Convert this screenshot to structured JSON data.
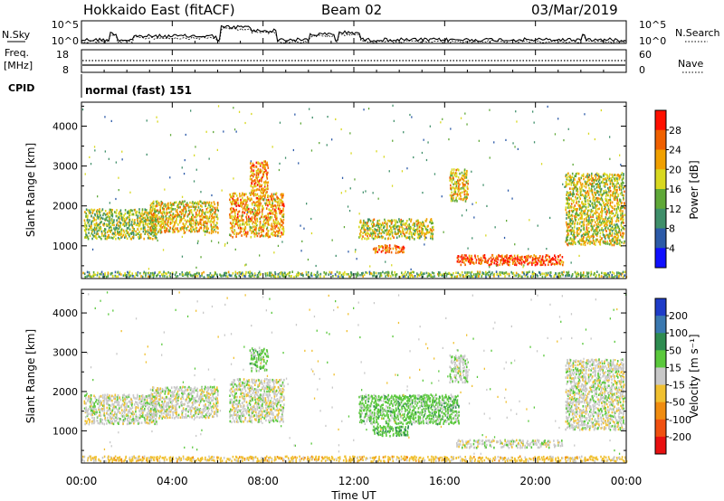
{
  "header": {
    "station": "Hokkaido East (fitACF)",
    "beam": "Beam 02",
    "date": "03/Mar/2019"
  },
  "noise_panel": {
    "left_label": "N.Sky",
    "right_label": "N.Search",
    "left_ticks": [
      "10^5",
      "10^0"
    ],
    "right_ticks": [
      "10^5",
      "10^0"
    ]
  },
  "freq_panel": {
    "left_label_1": "Freq.",
    "left_label_2": "[MHz]",
    "right_label": "Nave",
    "left_ticks": [
      "18",
      "8"
    ],
    "right_ticks": [
      "60",
      "0"
    ]
  },
  "cpid_panel": {
    "label": "CPID",
    "mode_text": "normal (fast) 151"
  },
  "x_axis": {
    "label": "Time UT",
    "ticks": [
      "00:00",
      "04:00",
      "08:00",
      "12:00",
      "16:00",
      "20:00",
      "00:00"
    ]
  },
  "chart_data": [
    {
      "type": "heatmap",
      "name_panel": "power",
      "ylabel": "Slant Range [km]",
      "y_ticks": [
        1000,
        2000,
        3000,
        4000
      ],
      "ylim": [
        180,
        4600
      ],
      "xlim_hours": [
        0,
        24
      ],
      "colorbar_label": "Power [dB]",
      "colorbar_ticks": [
        "4",
        "8",
        "12",
        "16",
        "20",
        "24",
        "28"
      ],
      "colorbar_colors": [
        "#1010ff",
        "#2c5aa8",
        "#3f8f6a",
        "#5fa838",
        "#d8d820",
        "#f0a000",
        "#f06000",
        "#ff1000"
      ],
      "regions": [
        {
          "t0": 0.1,
          "t1": 3.3,
          "r0": 1150,
          "r1": 1900,
          "value": 16
        },
        {
          "t0": 3.0,
          "t1": 6.0,
          "r0": 1300,
          "r1": 2100,
          "value": 20
        },
        {
          "t0": 6.5,
          "t1": 8.9,
          "r0": 1200,
          "r1": 2300,
          "value": 22
        },
        {
          "t0": 7.4,
          "t1": 8.2,
          "r0": 2300,
          "r1": 3100,
          "value": 24
        },
        {
          "t0": 12.2,
          "t1": 15.5,
          "r0": 1150,
          "r1": 1650,
          "value": 18
        },
        {
          "t0": 12.8,
          "t1": 14.2,
          "r0": 800,
          "r1": 1000,
          "value": 26
        },
        {
          "t0": 16.2,
          "t1": 17.0,
          "r0": 2100,
          "r1": 2900,
          "value": 20
        },
        {
          "t0": 16.5,
          "t1": 21.2,
          "r0": 500,
          "r1": 750,
          "value": 27
        },
        {
          "t0": 21.3,
          "t1": 23.9,
          "r0": 1000,
          "r1": 2800,
          "value": 18
        },
        {
          "t0": 0.0,
          "t1": 24.0,
          "r0": 200,
          "r1": 330,
          "value": 14
        }
      ]
    },
    {
      "type": "heatmap",
      "name_panel": "velocity",
      "ylabel": "Slant Range [km]",
      "y_ticks": [
        1000,
        2000,
        3000,
        4000
      ],
      "ylim": [
        180,
        4600
      ],
      "xlim_hours": [
        0,
        24
      ],
      "colorbar_label": "Velocity [m s⁻¹]",
      "colorbar_ticks": [
        "200",
        "100",
        "50",
        "15",
        "-15",
        "-50",
        "-100",
        "-200"
      ],
      "colorbar_colors": [
        "#1e3cc8",
        "#3a78b0",
        "#2e8c50",
        "#5ac83c",
        "#c8c8c8",
        "#f0c030",
        "#f08c10",
        "#f05010",
        "#e81010"
      ],
      "regions": [
        {
          "t0": 0.1,
          "t1": 3.3,
          "r0": 1150,
          "r1": 1900,
          "value": 0
        },
        {
          "t0": 3.0,
          "t1": 6.0,
          "r0": 1300,
          "r1": 2100,
          "value": 0
        },
        {
          "t0": 6.5,
          "t1": 8.9,
          "r0": 1200,
          "r1": 2300,
          "value": 0
        },
        {
          "t0": 7.4,
          "t1": 8.2,
          "r0": 2500,
          "r1": 3100,
          "value": 30
        },
        {
          "t0": 12.2,
          "t1": 16.6,
          "r0": 1150,
          "r1": 1900,
          "value": 30
        },
        {
          "t0": 12.8,
          "t1": 14.4,
          "r0": 850,
          "r1": 1100,
          "value": 40
        },
        {
          "t0": 16.2,
          "t1": 17.0,
          "r0": 2200,
          "r1": 2900,
          "value": 5
        },
        {
          "t0": 16.5,
          "t1": 21.2,
          "r0": 550,
          "r1": 750,
          "value": 0
        },
        {
          "t0": 21.3,
          "t1": 23.9,
          "r0": 1000,
          "r1": 2800,
          "value": 0
        },
        {
          "t0": 0.0,
          "t1": 24.0,
          "r0": 200,
          "r1": 330,
          "value": -30
        }
      ]
    }
  ]
}
